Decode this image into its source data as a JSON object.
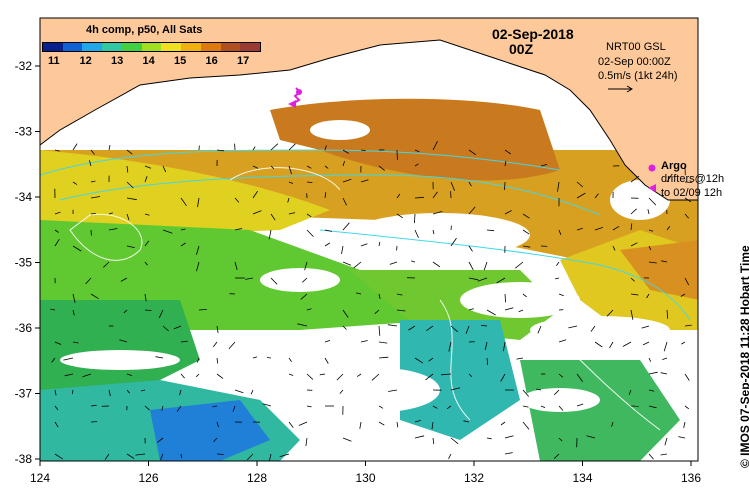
{
  "header": {
    "composite_label": "4h comp, p50, All Sats",
    "date": "02-Sep-2018",
    "hour": "00Z"
  },
  "colorbar": {
    "ticks": [
      "11",
      "12",
      "13",
      "14",
      "15",
      "16",
      "17"
    ],
    "colors": [
      "#08208c",
      "#1060d8",
      "#20a8e8",
      "#30c8a0",
      "#40d040",
      "#a0e020",
      "#f0e020",
      "#f0b010",
      "#e07810",
      "#b05020",
      "#9a3a30"
    ]
  },
  "current_info": {
    "model": "NRT00 GSL",
    "datetime": "02-Sep 00:00Z",
    "scale": "0.5m/s (1kt 24h)"
  },
  "legend": {
    "argo_label": "Argo",
    "drifter_line1": "drifters@12h",
    "drifter_line2": "to 02/09 12h",
    "marker_color": "#e020e0"
  },
  "credit": "© IMOS 07-Sep-2018 11:28 Hobart Time",
  "axes": {
    "x_ticks": [
      "124",
      "126",
      "128",
      "130",
      "132",
      "134",
      "136"
    ],
    "y_ticks": [
      "-32",
      "-33",
      "-34",
      "-35",
      "-36",
      "-37",
      "-38"
    ]
  },
  "colors": {
    "land": "#fdc99a",
    "current_line": "#40d8e8",
    "contour": "#ffffff"
  }
}
